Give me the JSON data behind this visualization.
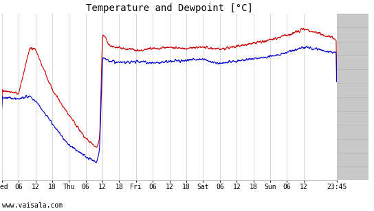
{
  "title": "Temperature and Dewpoint [°C]",
  "ylim": [
    -8,
    16
  ],
  "yticks": [
    -8,
    -6,
    -4,
    -2,
    0,
    2,
    4,
    6,
    8,
    10,
    12,
    14,
    16
  ],
  "x_tick_hours": [
    0,
    6,
    12,
    18,
    24,
    30,
    36,
    42,
    48,
    54,
    60,
    66,
    72,
    78,
    84,
    90,
    96,
    102,
    108,
    119.75
  ],
  "x_tick_labels": [
    "Wed",
    "06",
    "12",
    "18",
    "Thu",
    "06",
    "12",
    "18",
    "Fri",
    "06",
    "12",
    "18",
    "Sat",
    "06",
    "12",
    "18",
    "Sun",
    "06",
    "12",
    "23:45"
  ],
  "total_hours": 119.75,
  "watermark": "www.vaisala.com",
  "background_color": "#ffffff",
  "grid_color": "#c8c8c8",
  "temp_color": "#cc0000",
  "dew_color": "#0000cc",
  "right_panel_color": "#c8c8c8",
  "title_fontsize": 10,
  "tick_fontsize": 7,
  "watermark_fontsize": 7,
  "line_width": 0.8
}
